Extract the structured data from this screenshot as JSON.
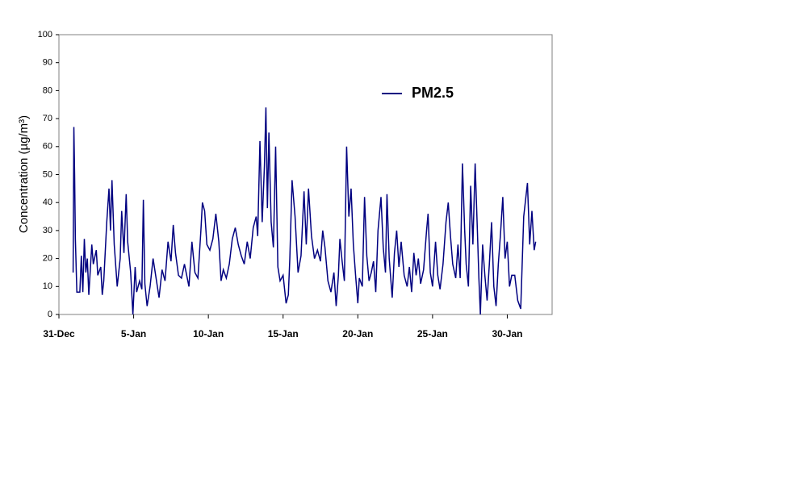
{
  "chart_data": {
    "type": "line",
    "y_label": "Concentration (µg/m³)",
    "x": [
      0.95,
      1.0,
      1.05,
      1.1,
      1.2,
      1.4,
      1.5,
      1.6,
      1.7,
      1.8,
      1.9,
      2.0,
      2.2,
      2.3,
      2.5,
      2.6,
      2.8,
      2.9,
      3.0,
      3.2,
      3.35,
      3.45,
      3.55,
      3.7,
      3.9,
      4.1,
      4.2,
      4.35,
      4.5,
      4.6,
      4.8,
      4.95,
      5.1,
      5.2,
      5.4,
      5.55,
      5.65,
      5.75,
      5.9,
      6.1,
      6.3,
      6.5,
      6.7,
      6.9,
      7.1,
      7.3,
      7.5,
      7.65,
      7.8,
      8.0,
      8.2,
      8.4,
      8.55,
      8.7,
      8.9,
      9.1,
      9.3,
      9.5,
      9.6,
      9.75,
      9.9,
      10.1,
      10.3,
      10.5,
      10.7,
      10.85,
      11.0,
      11.2,
      11.4,
      11.6,
      11.8,
      12.0,
      12.2,
      12.4,
      12.6,
      12.8,
      13.0,
      13.2,
      13.3,
      13.45,
      13.6,
      13.75,
      13.85,
      13.95,
      14.05,
      14.2,
      14.35,
      14.5,
      14.65,
      14.8,
      15.0,
      15.2,
      15.35,
      15.45,
      15.6,
      15.8,
      16.0,
      16.2,
      16.4,
      16.55,
      16.7,
      16.9,
      17.1,
      17.3,
      17.5,
      17.65,
      17.8,
      18.0,
      18.2,
      18.4,
      18.55,
      18.7,
      18.8,
      18.95,
      19.1,
      19.25,
      19.4,
      19.55,
      19.7,
      19.85,
      20.0,
      20.1,
      20.3,
      20.45,
      20.6,
      20.75,
      20.9,
      21.05,
      21.2,
      21.35,
      21.55,
      21.7,
      21.85,
      21.95,
      22.1,
      22.3,
      22.45,
      22.6,
      22.75,
      22.9,
      23.1,
      23.3,
      23.45,
      23.6,
      23.75,
      23.9,
      24.05,
      24.2,
      24.4,
      24.6,
      24.7,
      24.85,
      25.0,
      25.2,
      25.35,
      25.5,
      25.7,
      25.9,
      26.05,
      26.2,
      26.35,
      26.55,
      26.7,
      26.85,
      27.0,
      27.15,
      27.25,
      27.4,
      27.55,
      27.7,
      27.85,
      28.0,
      28.1,
      28.2,
      28.35,
      28.5,
      28.65,
      28.8,
      28.95,
      29.1,
      29.25,
      29.4,
      29.55,
      29.7,
      29.85,
      30.0,
      30.15,
      30.3,
      30.5,
      30.7,
      30.9,
      31.1,
      31.35,
      31.5,
      31.65,
      31.8,
      31.9
    ],
    "series": [
      {
        "name": "PM2.5",
        "color": "#000080",
        "values": [
          15,
          67,
          50,
          27,
          8,
          8,
          21,
          8,
          27,
          15,
          20,
          7,
          25,
          18,
          23,
          14,
          17,
          7,
          12,
          33,
          45,
          30,
          48,
          25,
          10,
          20,
          37,
          22,
          43,
          26,
          15,
          0,
          17,
          8,
          12,
          9,
          41,
          11,
          3,
          10,
          20,
          13,
          6,
          16,
          12,
          26,
          19,
          32,
          22,
          14,
          13,
          18,
          14,
          10,
          26,
          15,
          13,
          30,
          40,
          37,
          25,
          23,
          27,
          36,
          26,
          12,
          16,
          13,
          18,
          27,
          31,
          25,
          21,
          18,
          26,
          20,
          31,
          35,
          28,
          62,
          33,
          53,
          74,
          38,
          65,
          33,
          24,
          60,
          17,
          12,
          14,
          4,
          7,
          20,
          48,
          35,
          15,
          21,
          44,
          25,
          45,
          28,
          20,
          23,
          19,
          30,
          24,
          12,
          8,
          15,
          3,
          14,
          27,
          19,
          12,
          60,
          35,
          45,
          25,
          14,
          4,
          13,
          10,
          42,
          21,
          12,
          15,
          19,
          8,
          30,
          42,
          24,
          15,
          43,
          20,
          6,
          22,
          30,
          17,
          26,
          14,
          10,
          17,
          8,
          22,
          14,
          20,
          11,
          16,
          30,
          36,
          15,
          10,
          26,
          14,
          9,
          18,
          33,
          40,
          28,
          18,
          13,
          25,
          13,
          54,
          30,
          18,
          10,
          46,
          25,
          54,
          30,
          13,
          0,
          25,
          14,
          5,
          18,
          33,
          10,
          3,
          18,
          29,
          42,
          20,
          26,
          10,
          14,
          14,
          5,
          2,
          35,
          47,
          25,
          37,
          23,
          26
        ]
      }
    ],
    "xlim": [
      0,
      33
    ],
    "xticks": [
      {
        "value": 0,
        "label": "31-Dec"
      },
      {
        "value": 5,
        "label": "5-Jan"
      },
      {
        "value": 10,
        "label": "10-Jan"
      },
      {
        "value": 15,
        "label": "15-Jan"
      },
      {
        "value": 20,
        "label": "20-Jan"
      },
      {
        "value": 25,
        "label": "25-Jan"
      },
      {
        "value": 30,
        "label": "30-Jan"
      }
    ],
    "ylim": [
      0,
      100
    ],
    "yticks": [
      0,
      10,
      20,
      30,
      40,
      50,
      60,
      70,
      80,
      90,
      100
    ],
    "grid": false
  }
}
